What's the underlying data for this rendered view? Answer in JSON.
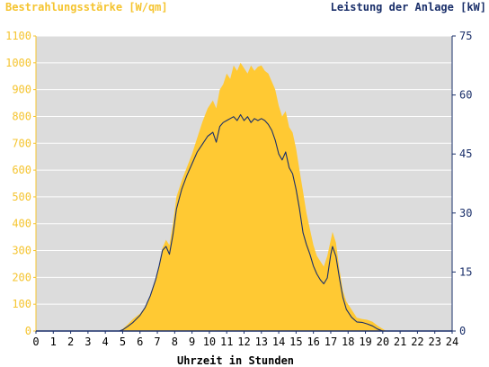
{
  "chart_data": {
    "type": "area",
    "left_axis_title": "Bestrahlungsstärke [W/qm]",
    "right_axis_title": "Leistung der Anlage [kW]",
    "xlabel": "Uhrzeit in Stunden",
    "xlim": [
      0,
      24
    ],
    "ylim_left": [
      0,
      1100
    ],
    "ylim_right": [
      0,
      75
    ],
    "x_ticks": [
      "0",
      "1",
      "2",
      "3",
      "4",
      "5",
      "6",
      "7",
      "8",
      "9",
      "10",
      "11",
      "12",
      "13",
      "14",
      "15",
      "16",
      "17",
      "18",
      "19",
      "20",
      "21",
      "22",
      "23",
      "24"
    ],
    "left_ticks": [
      "0",
      "100",
      "200",
      "300",
      "400",
      "500",
      "600",
      "700",
      "800",
      "900",
      "1000",
      "1100"
    ],
    "right_ticks": [
      "0",
      "15",
      "30",
      "45",
      "60",
      "75"
    ],
    "grid": true,
    "colors": {
      "plot_background": "#dcdcdc",
      "irradiance_fill": "#ffc933",
      "power_line": "#1a2f6a",
      "left_axis": "#f5c42f",
      "right_axis": "#1a2f6a",
      "grid": "#ffffff"
    },
    "series": [
      {
        "name": "Bestrahlungsstärke [W/qm]",
        "axis": "left",
        "style": "area",
        "x": [
          0,
          4.8,
          5,
          5.3,
          5.6,
          6,
          6.3,
          6.6,
          6.9,
          7.1,
          7.3,
          7.5,
          7.7,
          7.9,
          8.1,
          8.4,
          8.7,
          9,
          9.3,
          9.6,
          9.9,
          10.2,
          10.4,
          10.6,
          10.8,
          11,
          11.2,
          11.4,
          11.6,
          11.8,
          12,
          12.2,
          12.4,
          12.6,
          12.8,
          13,
          13.2,
          13.4,
          13.6,
          13.8,
          14,
          14.2,
          14.4,
          14.6,
          14.8,
          15,
          15.2,
          15.4,
          15.6,
          15.8,
          16,
          16.2,
          16.4,
          16.6,
          16.8,
          17,
          17.1,
          17.3,
          17.5,
          17.7,
          17.9,
          18.2,
          18.5,
          18.8,
          19.1,
          19.4,
          19.7,
          20,
          20.2,
          24
        ],
        "values": [
          0,
          0,
          8,
          25,
          45,
          65,
          90,
          130,
          190,
          240,
          310,
          340,
          320,
          400,
          500,
          560,
          610,
          660,
          720,
          780,
          830,
          860,
          830,
          900,
          920,
          960,
          940,
          990,
          970,
          1000,
          980,
          960,
          990,
          970,
          985,
          990,
          970,
          960,
          930,
          900,
          840,
          800,
          820,
          760,
          740,
          680,
          600,
          520,
          440,
          380,
          320,
          280,
          260,
          240,
          280,
          340,
          370,
          330,
          230,
          150,
          110,
          80,
          50,
          45,
          42,
          35,
          20,
          8,
          0,
          0
        ]
      },
      {
        "name": "Leistung der Anlage [kW]",
        "axis": "right",
        "style": "line",
        "x": [
          0,
          4.8,
          5,
          5.3,
          5.6,
          6,
          6.3,
          6.6,
          6.9,
          7.1,
          7.3,
          7.5,
          7.7,
          7.9,
          8.1,
          8.4,
          8.7,
          9,
          9.3,
          9.6,
          9.9,
          10.2,
          10.4,
          10.6,
          10.8,
          11,
          11.2,
          11.4,
          11.6,
          11.8,
          12,
          12.2,
          12.4,
          12.6,
          12.8,
          13,
          13.2,
          13.4,
          13.6,
          13.8,
          14,
          14.2,
          14.4,
          14.6,
          14.8,
          15,
          15.2,
          15.4,
          15.6,
          15.8,
          16,
          16.2,
          16.4,
          16.6,
          16.8,
          17,
          17.1,
          17.3,
          17.5,
          17.7,
          17.9,
          18.2,
          18.5,
          18.8,
          19.1,
          19.4,
          19.7,
          20,
          20.2,
          24
        ],
        "values": [
          0,
          0,
          0.3,
          1.2,
          2.2,
          4,
          6,
          9,
          13,
          16.5,
          20.5,
          21.5,
          19.5,
          24.5,
          31,
          36,
          39.5,
          42.5,
          45.5,
          47.5,
          49.5,
          50.5,
          48,
          52,
          53,
          53.5,
          54,
          54.5,
          53.5,
          55,
          53.5,
          54.5,
          53,
          54,
          53.5,
          54,
          53.5,
          52.5,
          51,
          48.5,
          45,
          43.5,
          45.5,
          41.5,
          40,
          36,
          31,
          25,
          22,
          19.5,
          16.5,
          14.5,
          13,
          12,
          13.5,
          19.5,
          21.5,
          19,
          13.5,
          8.5,
          5.5,
          3.5,
          2.3,
          2.2,
          1.8,
          1.3,
          0.5,
          0,
          0,
          0
        ]
      }
    ]
  }
}
